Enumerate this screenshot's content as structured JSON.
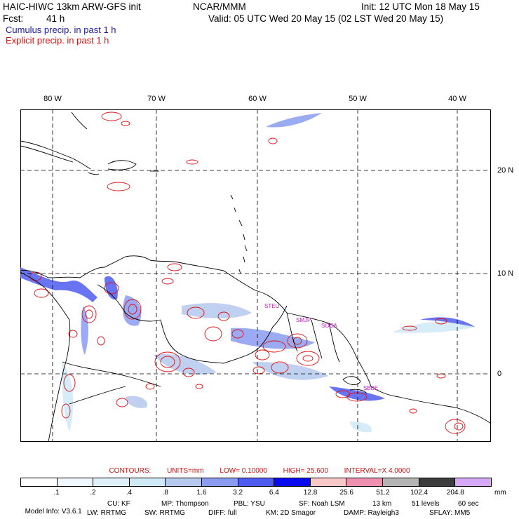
{
  "header": {
    "title": "HAIC-HIWC 13km ARW-GFS init",
    "org": "NCAR/MMM",
    "init": "Init: 12 UTC Mon 18 May 15",
    "fcst_label": "Fcst:",
    "fcst_value": "41 h",
    "valid": "Valid: 05 UTC Wed 20 May 15 (02 LST Wed 20 May 15)"
  },
  "legend": {
    "cumulus": "Cumulus precip. in past 1 h",
    "explicit": "Explicit precip. in past 1 h"
  },
  "longitudes": [
    "80 W",
    "70 W",
    "60 W",
    "50 W",
    "40 W"
  ],
  "latitudes": [
    "20 N",
    "10 N",
    "0"
  ],
  "sites": [
    "STEU",
    "SMJP",
    "SOCA",
    "SBBE"
  ],
  "contours": {
    "label": "CONTOURS:",
    "units": "UNITS=mm",
    "low": "LOW=  0.10000",
    "high": "HIGH=  25.600",
    "interval": "INTERVAL=X  4.0000"
  },
  "colorbar": {
    "labels": [
      ".1",
      ".2",
      ".4",
      ".8",
      "1.6",
      "3.2",
      "6.4",
      "12.8",
      "25.6",
      "51.2",
      "102.4",
      "204.8"
    ],
    "unit": "mm",
    "colors": [
      "#ffffff",
      "#f0f8ff",
      "#dff0fa",
      "#cfe9f7",
      "#b6c8ee",
      "#8a9cf0",
      "#4f5cf2",
      "#0a0af0",
      "#fbc8c8",
      "#f090b0",
      "#b4b4b4",
      "#3c3c3c",
      "#d8a8f8"
    ]
  },
  "model_info": {
    "line1": [
      "Model Info: V3.6.1",
      "CU: KF",
      "MP: Thompson",
      "PBL: YSU",
      "SF: Noah LSM",
      "13 km",
      "51 levels",
      "60 sec"
    ],
    "line2": [
      "LW: RRTMG",
      "SW: RRTMG",
      "DIFF: full",
      "KM: 2D Smagor",
      "DAMP: Rayleigh3",
      "SFLAY: MM5"
    ]
  }
}
